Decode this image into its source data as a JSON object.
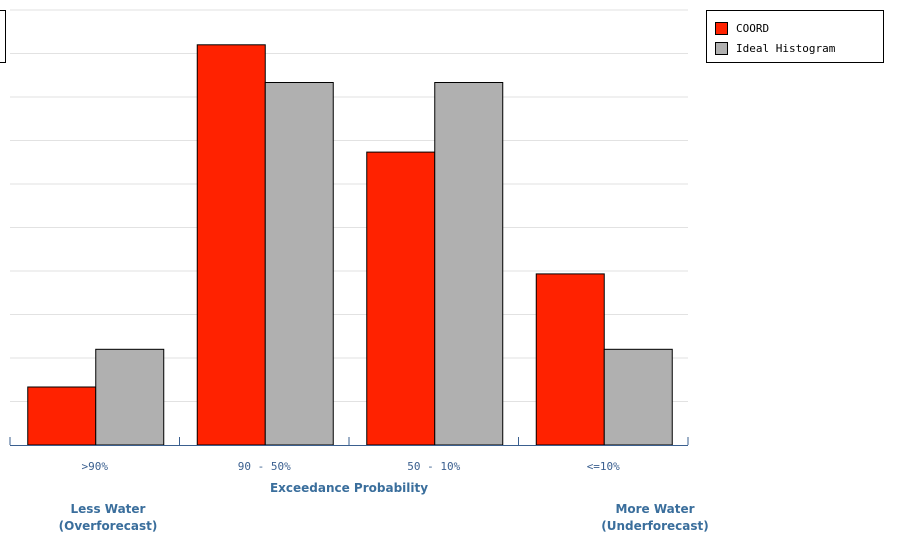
{
  "chart_data": {
    "type": "bar",
    "categories": [
      ">90%",
      "90 - 50%",
      "50 - 10%",
      "<=10%"
    ],
    "series": [
      {
        "name": "COORD",
        "values": [
          2.0,
          13.8,
          10.1,
          5.9
        ],
        "color": "#ff2200"
      },
      {
        "name": "Ideal Histogram",
        "values": [
          3.3,
          12.5,
          12.5,
          3.3
        ],
        "color": "#b0b0b0"
      }
    ],
    "title": "",
    "xlabel": "Exceedance Probability",
    "ylabel": "",
    "ylim": [
      0,
      15
    ],
    "grid": true,
    "legend_position": "top-right",
    "annotations": {
      "left_line1": "Less Water",
      "left_line2": "(Overforecast)",
      "right_line1": "More Water",
      "right_line2": "(Underforecast)"
    }
  }
}
